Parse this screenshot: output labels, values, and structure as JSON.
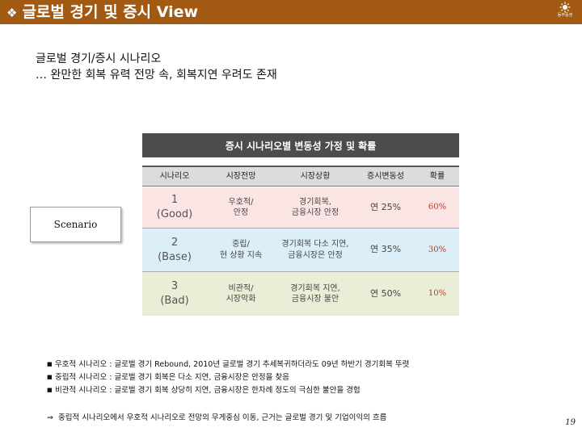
{
  "header": {
    "bullet": "❖",
    "title": "글로벌 경기 및 증시 View",
    "logo_label": "동부증권",
    "background_color": "#a25a12"
  },
  "subtitle": {
    "line1": "글로벌 경기/증시 시나리오",
    "line2": "… 완만한 회복 유력 전망 속, 회복지연 우려도 존재"
  },
  "scenario_box": {
    "label": "Scenario"
  },
  "table": {
    "title": "증시 시나리오별 변동성 가정 및 확률",
    "columns": [
      "시나리오",
      "시장전망",
      "시장상황",
      "증시변동성",
      "확률"
    ],
    "rows": [
      {
        "scenario_number": "1",
        "scenario_name": "(Good)",
        "outlook_line1": "우호적/",
        "outlook_line2": "안정",
        "situation_line1": "경기회복,",
        "situation_line2": "금융시장 안정",
        "volatility": "연 25%",
        "probability": "60%",
        "color": "#fbe4e4"
      },
      {
        "scenario_number": "2",
        "scenario_name": "(Base)",
        "outlook_line1": "중립/",
        "outlook_line2": "현 상황 지속",
        "situation_line1": "경기회복 다소 지연,",
        "situation_line2": "금융시장은 안정",
        "volatility": "연 35%",
        "probability": "30%",
        "color": "#dceef7"
      },
      {
        "scenario_number": "3",
        "scenario_name": "(Bad)",
        "outlook_line1": "비관적/",
        "outlook_line2": "시장악화",
        "situation_line1": "경기회복 지연,",
        "situation_line2": "금융시장 불안",
        "volatility": "연 50%",
        "probability": "10%",
        "color": "#e8efd6"
      }
    ]
  },
  "notes": [
    "우호적 시나리오 : 글로벌 경기 Rebound, 2010년 글로벌 경기 추세복귀하더라도 09년 하반기 경기회복 뚜렷",
    "중립적 시나리오 : 글로벌 경기 회복은 다소 지연, 금융시장은 안정을 찾음",
    "비관적 시나리오 : 글로벌 경기 회복 상당히 지연, 금융시장은 한차례 정도의 극심한 불안을 경험"
  ],
  "conclusion": {
    "arrow": "⇒",
    "text": "중립적 시나리오에서 우호적 시나리오로 전망의 무게중심 이동, 근거는 글로벌 경기 및 기업이익의 흐름"
  },
  "page_number": "19"
}
